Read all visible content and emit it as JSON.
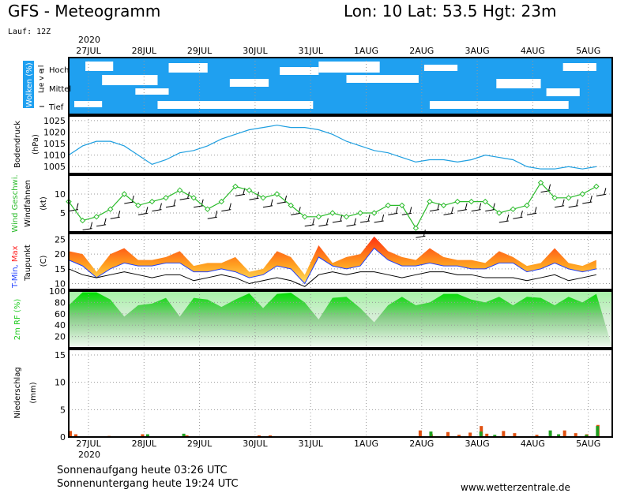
{
  "header": {
    "title": "GFS - Meteogramm",
    "location": "Lon: 10 Lat: 53.5 Hgt: 23m",
    "run": "Lauf: 12Z"
  },
  "year_label": "2020",
  "dates": [
    "27JUL",
    "28JUL",
    "29JUL",
    "30JUL",
    "31JUL",
    "1AUG",
    "2AUG",
    "3AUG",
    "4AUG",
    "5AUG"
  ],
  "footer": {
    "sunrise": "Sonnenaufgang heute 03:26 UTC",
    "sunset": "Sonnenuntergang heute 19:24 UTC",
    "site": "www.wetterzentrale.de"
  },
  "colors": {
    "cloud_blue": "#1fa0f0",
    "pressure": "#1f9fe0",
    "wind_speed": "#2bbb2b",
    "tmax": "#ff2020",
    "tmin": "#2040ff",
    "rh": "#22cc22",
    "precip_rain": "#e05010",
    "precip_conv": "#20a020"
  },
  "chart_data": [
    {
      "type": "heatmap",
      "panel": "wolken",
      "ylabel": "Wolken (%)",
      "ylabel2": "Level",
      "levels": [
        "Hoch",
        "Mittel",
        "Tief"
      ]
    },
    {
      "type": "line",
      "panel": "bodendruck",
      "ylabel": "Bodendruck",
      "unit": "(hPa)",
      "ylim": [
        1002,
        1027
      ],
      "yticks": [
        1005,
        1010,
        1015,
        1020,
        1025
      ],
      "x": [
        0,
        0.25,
        0.5,
        0.75,
        1,
        1.25,
        1.5,
        1.75,
        2,
        2.25,
        2.5,
        2.75,
        3,
        3.25,
        3.5,
        3.75,
        4,
        4.25,
        4.5,
        4.75,
        5,
        5.25,
        5.5,
        5.75,
        6,
        6.25,
        6.5,
        6.75,
        7,
        7.25,
        7.5,
        7.75,
        8,
        8.25,
        8.5,
        8.75,
        9,
        9.25,
        9.5
      ],
      "values": [
        1010,
        1014,
        1016,
        1016,
        1014,
        1010,
        1006,
        1008,
        1011,
        1012,
        1014,
        1017,
        1019,
        1021,
        1022,
        1023,
        1022,
        1022,
        1021,
        1019,
        1016,
        1014,
        1012,
        1011,
        1009,
        1007,
        1008,
        1008,
        1007,
        1008,
        1010,
        1009,
        1008,
        1005,
        1004,
        1004,
        1005,
        1004,
        1005
      ]
    },
    {
      "type": "line",
      "panel": "wind",
      "ylabel": "Wind Geschwi.",
      "ylabel2": "Windfahnen",
      "unit": "(kt)",
      "ylim": [
        0,
        15
      ],
      "yticks": [
        5,
        10
      ],
      "x": [
        0,
        0.25,
        0.5,
        0.75,
        1,
        1.25,
        1.5,
        1.75,
        2,
        2.25,
        2.5,
        2.75,
        3,
        3.25,
        3.5,
        3.75,
        4,
        4.25,
        4.5,
        4.75,
        5,
        5.25,
        5.5,
        5.75,
        6,
        6.25,
        6.5,
        6.75,
        7,
        7.25,
        7.5,
        7.75,
        8,
        8.25,
        8.5,
        8.75,
        9,
        9.25,
        9.5
      ],
      "values": [
        8,
        3,
        4,
        6,
        10,
        7,
        8,
        9,
        11,
        9,
        6,
        8,
        12,
        11,
        9,
        10,
        7,
        4,
        4,
        5,
        4,
        5,
        5,
        7,
        7,
        1,
        8,
        7,
        8,
        8,
        8,
        5,
        6,
        7,
        13,
        9,
        9,
        10,
        12
      ]
    },
    {
      "type": "area",
      "panel": "temperatur",
      "ylabel": "T-Min, Max",
      "ylabel2": "Taupunkt",
      "unit": "(C)",
      "ylim": [
        8,
        27
      ],
      "yticks": [
        10,
        15,
        20,
        25
      ],
      "x": [
        0,
        0.25,
        0.5,
        0.75,
        1,
        1.25,
        1.5,
        1.75,
        2,
        2.25,
        2.5,
        2.75,
        3,
        3.25,
        3.5,
        3.75,
        4,
        4.25,
        4.5,
        4.75,
        5,
        5.25,
        5.5,
        5.75,
        6,
        6.25,
        6.5,
        6.75,
        7,
        7.25,
        7.5,
        7.75,
        8,
        8.25,
        8.5,
        8.75,
        9,
        9.25,
        9.5
      ],
      "series": [
        {
          "name": "Max",
          "values": [
            21,
            20,
            14,
            20,
            22,
            18,
            18,
            19,
            21,
            16,
            17,
            17,
            19,
            14,
            15,
            21,
            19,
            13,
            23,
            17,
            19,
            20,
            26,
            21,
            19,
            18,
            22,
            19,
            18,
            18,
            17,
            21,
            19,
            16,
            17,
            22,
            17,
            16,
            18
          ]
        },
        {
          "name": "Min",
          "values": [
            18,
            16,
            12,
            15,
            17,
            16,
            16,
            17,
            17,
            14,
            14,
            15,
            14,
            12,
            13,
            16,
            15,
            10,
            19,
            16,
            15,
            16,
            22,
            18,
            16,
            16,
            17,
            16,
            16,
            15,
            15,
            17,
            17,
            14,
            15,
            17,
            15,
            14,
            15
          ]
        },
        {
          "name": "Taupunkt",
          "values": [
            15,
            13,
            12,
            13,
            14,
            13,
            12,
            13,
            13,
            11,
            12,
            13,
            12,
            10,
            11,
            12,
            11,
            9,
            13,
            14,
            13,
            14,
            14,
            13,
            12,
            13,
            14,
            14,
            13,
            13,
            12,
            12,
            12,
            11,
            12,
            13,
            11,
            12,
            13
          ]
        }
      ]
    },
    {
      "type": "area",
      "panel": "feuchte",
      "ylabel": "2m RF (%)",
      "ylim": [
        0,
        100
      ],
      "yticks": [
        20,
        40,
        60,
        80,
        100
      ],
      "x": [
        0,
        0.25,
        0.5,
        0.75,
        1,
        1.25,
        1.5,
        1.75,
        2,
        2.25,
        2.5,
        2.75,
        3,
        3.25,
        3.5,
        3.75,
        4,
        4.25,
        4.5,
        4.75,
        5,
        5.25,
        5.5,
        5.75,
        6,
        6.25,
        6.5,
        6.75,
        7,
        7.25,
        7.5,
        7.75,
        8,
        8.25,
        8.5,
        8.75,
        9,
        9.25,
        9.5
      ],
      "values": [
        75,
        98,
        98,
        85,
        55,
        75,
        78,
        88,
        55,
        88,
        85,
        72,
        85,
        96,
        70,
        95,
        97,
        80,
        50,
        88,
        90,
        70,
        45,
        75,
        90,
        75,
        80,
        95,
        95,
        85,
        80,
        90,
        75,
        90,
        88,
        75,
        90,
        80,
        95
      ]
    },
    {
      "type": "bar",
      "panel": "niederschlag",
      "ylabel": "Niederschlag",
      "unit": "(mm)",
      "ylim": [
        0,
        16
      ],
      "yticks": [
        0,
        5,
        10,
        15
      ],
      "series": [
        {
          "name": "Regen",
          "x": [
            0,
            0.1,
            0.7,
            1.3,
            2.1,
            3.4,
            3.6,
            6.3,
            6.5,
            6.8,
            7.0,
            7.2,
            7.4,
            7.5,
            7.8,
            8.0,
            8.4,
            8.9,
            9.1,
            9.3,
            9.5
          ],
          "values": [
            1.1,
            0.5,
            0.2,
            0.5,
            0.3,
            0.3,
            0.3,
            1.2,
            0.5,
            0.9,
            0.4,
            0.8,
            2.0,
            0.6,
            1.1,
            0.7,
            0.4,
            1.2,
            0.7,
            0.5,
            2.2
          ]
        },
        {
          "name": "Konvektiv",
          "x": [
            1.35,
            2.0,
            6.45,
            7.35,
            7.6,
            8.6,
            8.75,
            9.25,
            9.45
          ],
          "values": [
            0.5,
            0.6,
            1.0,
            1.0,
            0.4,
            1.2,
            0.5,
            0.4,
            2.0
          ]
        }
      ]
    }
  ]
}
